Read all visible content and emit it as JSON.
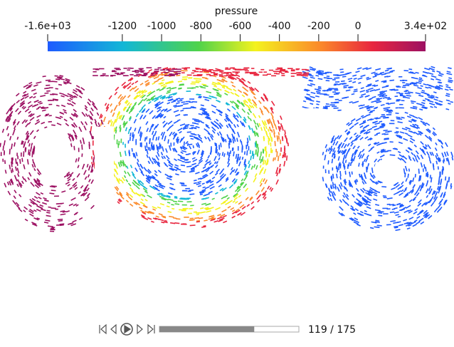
{
  "colorbar": {
    "title": "pressure",
    "range": [
      -1580,
      344
    ],
    "ticks": [
      {
        "value": -1580,
        "label": "-1.6e+03"
      },
      -1200,
      -1000,
      -800,
      -600,
      -400,
      -200,
      0,
      {
        "value": 344,
        "label": "3.4e+02"
      }
    ]
  },
  "player": {
    "frame_label": "119 / 175",
    "current": 119,
    "total": 175
  }
}
